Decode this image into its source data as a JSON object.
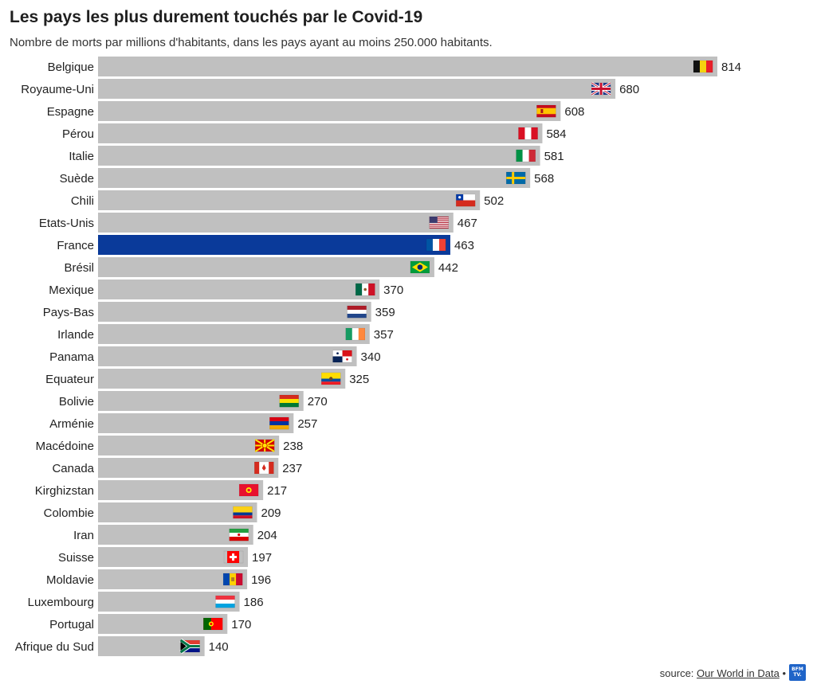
{
  "header": {
    "title": "Les pays les plus durement touchés par le Covid-19",
    "subtitle": "Nombre de morts par millions d'habitants, dans les pays ayant au moins 250.000 habitants."
  },
  "footer": {
    "source_prefix": "source: ",
    "source_link": "Our World in Data",
    "separator": " •",
    "logo_text": "BFM TV."
  },
  "colors": {
    "bar": "#c0c0c0",
    "highlight": "#0a3a9a",
    "text": "#222222"
  },
  "chart_data": {
    "type": "bar",
    "orientation": "horizontal",
    "title": "Les pays les plus durement touchés par le Covid-19",
    "subtitle": "Nombre de morts par millions d'habitants, dans les pays ayant au moins 250.000 habitants.",
    "highlight": "France",
    "categories": [
      "Belgique",
      "Royaume-Uni",
      "Espagne",
      "Pérou",
      "Italie",
      "Suède",
      "Chili",
      "Etats-Unis",
      "France",
      "Brésil",
      "Mexique",
      "Pays-Bas",
      "Irlande",
      "Panama",
      "Equateur",
      "Bolivie",
      "Arménie",
      "Macédoine",
      "Canada",
      "Kirghizstan",
      "Colombie",
      "Iran",
      "Suisse",
      "Moldavie",
      "Luxembourg",
      "Portugal",
      "Afrique du Sud"
    ],
    "values": [
      814,
      680,
      608,
      584,
      581,
      568,
      502,
      467,
      463,
      442,
      370,
      359,
      357,
      340,
      325,
      270,
      257,
      238,
      237,
      217,
      209,
      204,
      197,
      196,
      186,
      170,
      140
    ],
    "flags": [
      "be-flag-icon",
      "uk-flag-icon",
      "es-flag-icon",
      "pe-flag-icon",
      "it-flag-icon",
      "se-flag-icon",
      "cl-flag-icon",
      "us-flag-icon",
      "fr-flag-icon",
      "br-flag-icon",
      "mx-flag-icon",
      "nl-flag-icon",
      "ie-flag-icon",
      "pa-flag-icon",
      "ec-flag-icon",
      "bo-flag-icon",
      "am-flag-icon",
      "mk-flag-icon",
      "ca-flag-icon",
      "kg-flag-icon",
      "co-flag-icon",
      "ir-flag-icon",
      "ch-flag-icon",
      "md-flag-icon",
      "lu-flag-icon",
      "pt-flag-icon",
      "za-flag-icon"
    ],
    "xlim": [
      0,
      814
    ],
    "grid": false,
    "legend": "none"
  }
}
